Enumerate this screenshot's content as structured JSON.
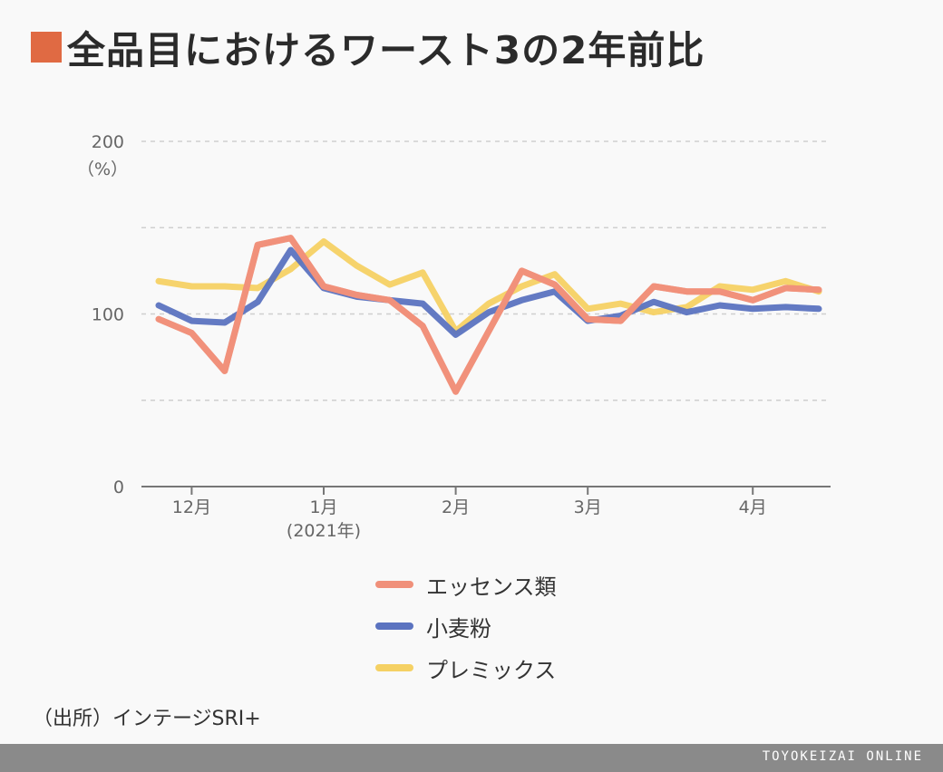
{
  "title": "全品目におけるワースト3の2年前比",
  "colors": {
    "accent": "#e06a43",
    "essence": "#f0907a",
    "flour": "#5b73c0",
    "premix": "#f5d164"
  },
  "chart_data": {
    "type": "line",
    "title": "全品目におけるワースト3の2年前比",
    "ylabel": "（%）",
    "ylim": [
      0,
      200
    ],
    "yticks": [
      0,
      100,
      200
    ],
    "grid": true,
    "x_ticks": [
      {
        "label": "12月",
        "index": 1
      },
      {
        "label": "1月",
        "sublabel": "(2021年)",
        "index": 5
      },
      {
        "label": "2月",
        "index": 9
      },
      {
        "label": "3月",
        "index": 13
      },
      {
        "label": "4月",
        "index": 18
      }
    ],
    "x_count": 21,
    "legend_position": "bottom",
    "series": [
      {
        "name": "エッセンス類",
        "color": "#f0907a",
        "values": [
          97,
          89,
          67,
          140,
          144,
          116,
          111,
          108,
          93,
          55,
          90,
          125,
          117,
          97,
          96,
          116,
          113,
          113,
          108,
          115,
          114
        ]
      },
      {
        "name": "小麦粉",
        "color": "#5b73c0",
        "values": [
          105,
          96,
          95,
          107,
          137,
          115,
          110,
          108,
          106,
          88,
          101,
          108,
          113,
          96,
          99,
          107,
          101,
          105,
          103,
          104,
          103
        ]
      },
      {
        "name": "プレミックス",
        "color": "#f5d164",
        "values": [
          119,
          116,
          116,
          115,
          126,
          142,
          128,
          117,
          124,
          90,
          106,
          116,
          123,
          103,
          106,
          101,
          104,
          116,
          114,
          119,
          113
        ]
      }
    ]
  },
  "legend": [
    {
      "label": "エッセンス類",
      "color": "#f0907a"
    },
    {
      "label": "小麦粉",
      "color": "#5b73c0"
    },
    {
      "label": "プレミックス",
      "color": "#f5d164"
    }
  ],
  "source": "（出所）インテージSRI+",
  "footer": "TOYOKEIZAI ONLINE"
}
